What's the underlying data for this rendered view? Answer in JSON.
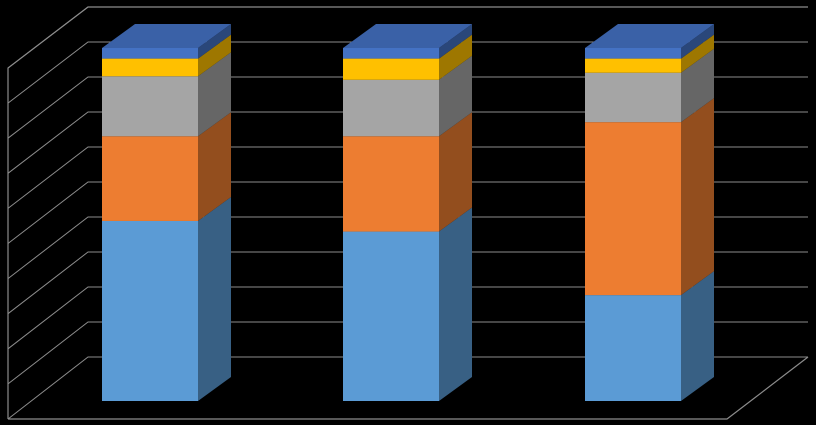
{
  "chart_data": {
    "type": "bar",
    "stacked": true,
    "three_d": true,
    "title": "",
    "xlabel": "",
    "ylabel": "",
    "categories": [
      "",
      "",
      ""
    ],
    "ylim": [
      0,
      1
    ],
    "grid": true,
    "legend": "none",
    "series": [
      {
        "color": "#5B9BD5",
        "values": [
          0.51,
          0.48,
          0.3
        ]
      },
      {
        "color": "#ED7D31",
        "values": [
          0.24,
          0.27,
          0.49
        ]
      },
      {
        "color": "#A5A5A5",
        "values": [
          0.17,
          0.16,
          0.14
        ]
      },
      {
        "color": "#FFC000",
        "values": [
          0.05,
          0.06,
          0.04
        ]
      },
      {
        "color": "#4472C4",
        "values": [
          0.03,
          0.03,
          0.03
        ]
      }
    ]
  }
}
